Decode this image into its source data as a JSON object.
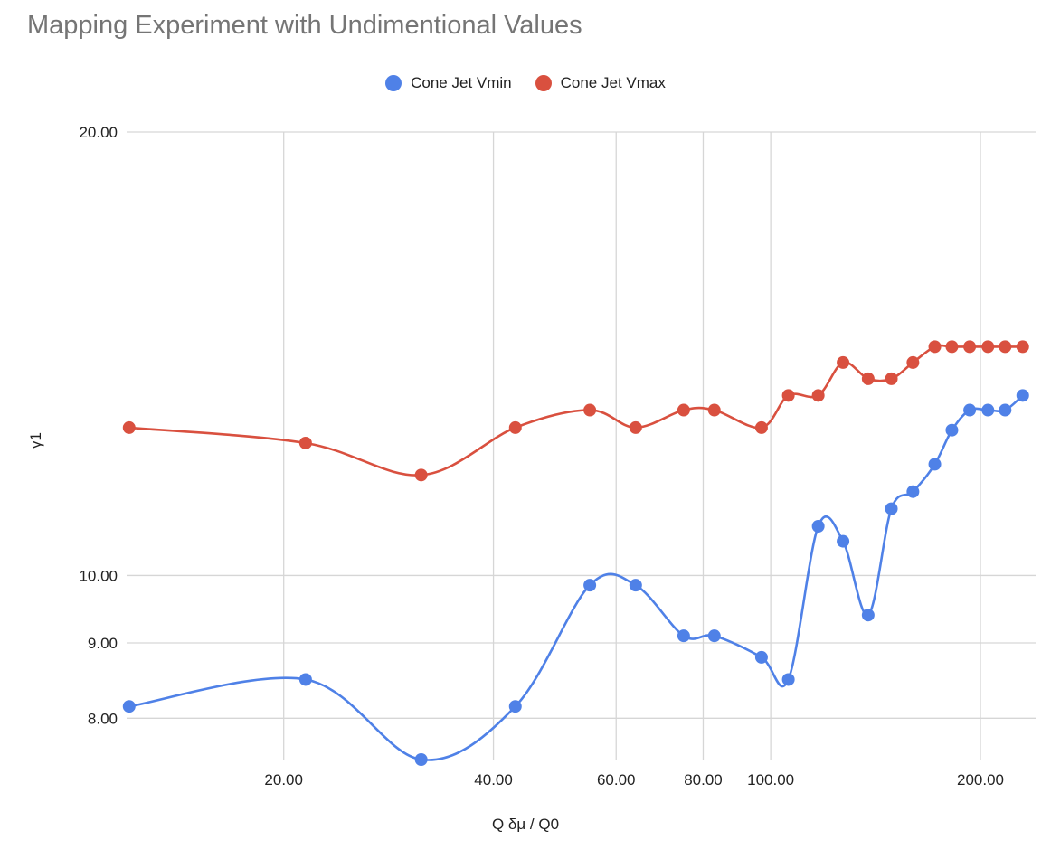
{
  "chart_data": {
    "type": "line",
    "title": "Mapping Experiment with Undimentional Values",
    "xlabel": "Q δμ / Q0",
    "ylabel": "γ1",
    "x_scale": "log",
    "y_scale": "log",
    "xlim": [
      11.9,
      240
    ],
    "ylim": [
      7.5,
      20
    ],
    "x_ticks": [
      {
        "value": 20,
        "label": "20.00"
      },
      {
        "value": 40,
        "label": "40.00"
      },
      {
        "value": 60,
        "label": "60.00"
      },
      {
        "value": 80,
        "label": "80.00"
      },
      {
        "value": 100,
        "label": "100.00"
      },
      {
        "value": 200,
        "label": "200.00"
      }
    ],
    "y_ticks": [
      {
        "value": 8,
        "label": "8.00"
      },
      {
        "value": 9,
        "label": "9.00"
      },
      {
        "value": 10,
        "label": "10.00"
      },
      {
        "value": 20,
        "label": "20.00"
      }
    ],
    "grid": true,
    "legend_position": "top",
    "smooth": true,
    "series": [
      {
        "name": "Cone Jet Vmin",
        "color": "#4f81e7",
        "points": [
          [
            12.0,
            8.15
          ],
          [
            21.5,
            8.5
          ],
          [
            31.5,
            7.5
          ],
          [
            43.0,
            8.15
          ],
          [
            55.0,
            9.85
          ],
          [
            64.0,
            9.85
          ],
          [
            75.0,
            9.1
          ],
          [
            83.0,
            9.1
          ],
          [
            97.0,
            8.8
          ],
          [
            106.0,
            8.5
          ],
          [
            117.0,
            10.8
          ],
          [
            127.0,
            10.55
          ],
          [
            138.0,
            9.4
          ],
          [
            149.0,
            11.1
          ],
          [
            160.0,
            11.4
          ],
          [
            172.0,
            11.9
          ],
          [
            182.0,
            12.55
          ],
          [
            193.0,
            12.95
          ],
          [
            205.0,
            12.95
          ],
          [
            217.0,
            12.95
          ],
          [
            230.0,
            13.25
          ]
        ]
      },
      {
        "name": "Cone Jet Vmax",
        "color": "#d9503f",
        "points": [
          [
            12.0,
            12.6
          ],
          [
            21.5,
            12.3
          ],
          [
            31.5,
            11.7
          ],
          [
            43.0,
            12.6
          ],
          [
            55.0,
            12.95
          ],
          [
            64.0,
            12.6
          ],
          [
            75.0,
            12.95
          ],
          [
            83.0,
            12.95
          ],
          [
            97.0,
            12.6
          ],
          [
            106.0,
            13.25
          ],
          [
            117.0,
            13.25
          ],
          [
            127.0,
            13.95
          ],
          [
            138.0,
            13.6
          ],
          [
            149.0,
            13.6
          ],
          [
            160.0,
            13.95
          ],
          [
            172.0,
            14.3
          ],
          [
            182.0,
            14.3
          ],
          [
            193.0,
            14.3
          ],
          [
            205.0,
            14.3
          ],
          [
            217.0,
            14.3
          ],
          [
            230.0,
            14.3
          ]
        ]
      }
    ]
  }
}
